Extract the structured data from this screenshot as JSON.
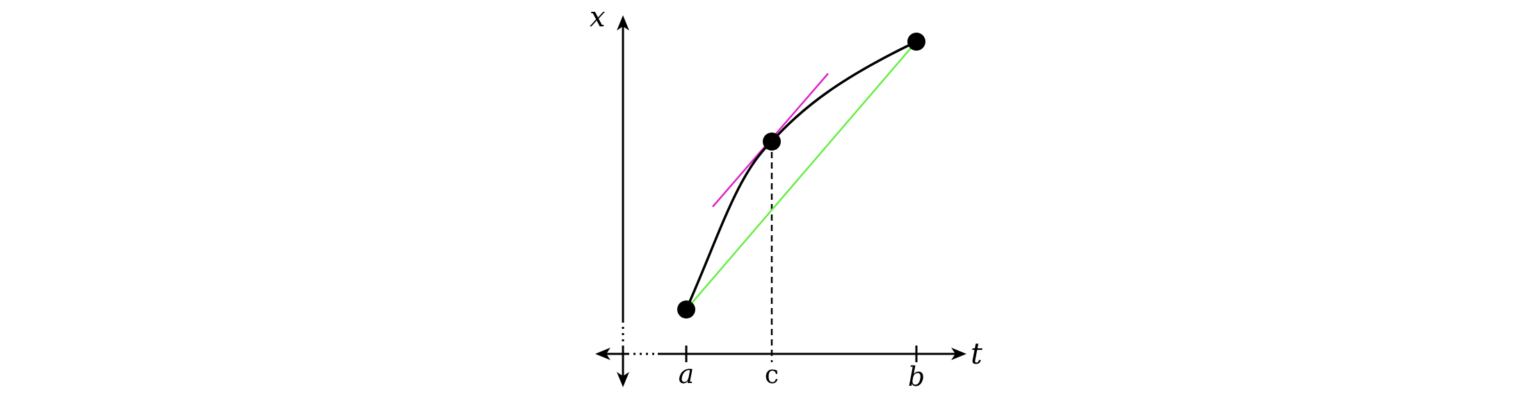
{
  "axes": {
    "vertical_label": "x",
    "horizontal_label": "t"
  },
  "ticks": {
    "a_label": "a",
    "c_label": "c",
    "b_label": "b"
  },
  "colors": {
    "curve": "#000000",
    "secant": "#66ee44",
    "tangent": "#dd22cc",
    "axis": "#000000",
    "point": "#000000"
  }
}
